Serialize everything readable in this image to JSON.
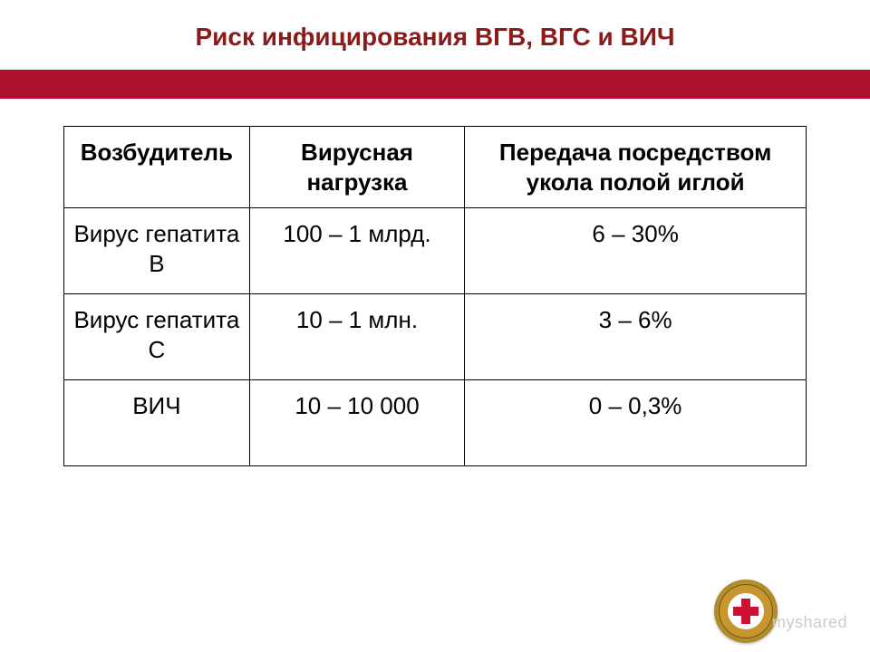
{
  "title": "Риск инфицирования ВГВ, ВГС и ВИЧ",
  "table": {
    "type": "table",
    "border_color": "#000000",
    "header_fontsize": 26,
    "cell_fontsize": 26,
    "background_color": "#ffffff",
    "columns": [
      {
        "label": "Возбудитель",
        "width_pct": 25
      },
      {
        "label": "Вирусная нагрузка",
        "width_pct": 29
      },
      {
        "label": "Передача посредством укола полой иглой",
        "width_pct": 46
      }
    ],
    "rows": [
      [
        "Вирус гепатита В",
        "100 – 1 млрд.",
        "6 – 30%"
      ],
      [
        "Вирус гепатита С",
        "10 – 1 млн.",
        "3 – 6%"
      ],
      [
        "ВИЧ",
        "10 – 10 000",
        "0 – 0,3%"
      ]
    ]
  },
  "colors": {
    "title_color": "#8b1a1a",
    "accent_bar": "#b01030",
    "text_color": "#000000",
    "watermark_color": "#cccccc",
    "badge_gold": "#c8962e",
    "badge_cross": "#d01030"
  },
  "watermark": "myshared",
  "badge": {
    "name": "medical-cross-seal"
  }
}
